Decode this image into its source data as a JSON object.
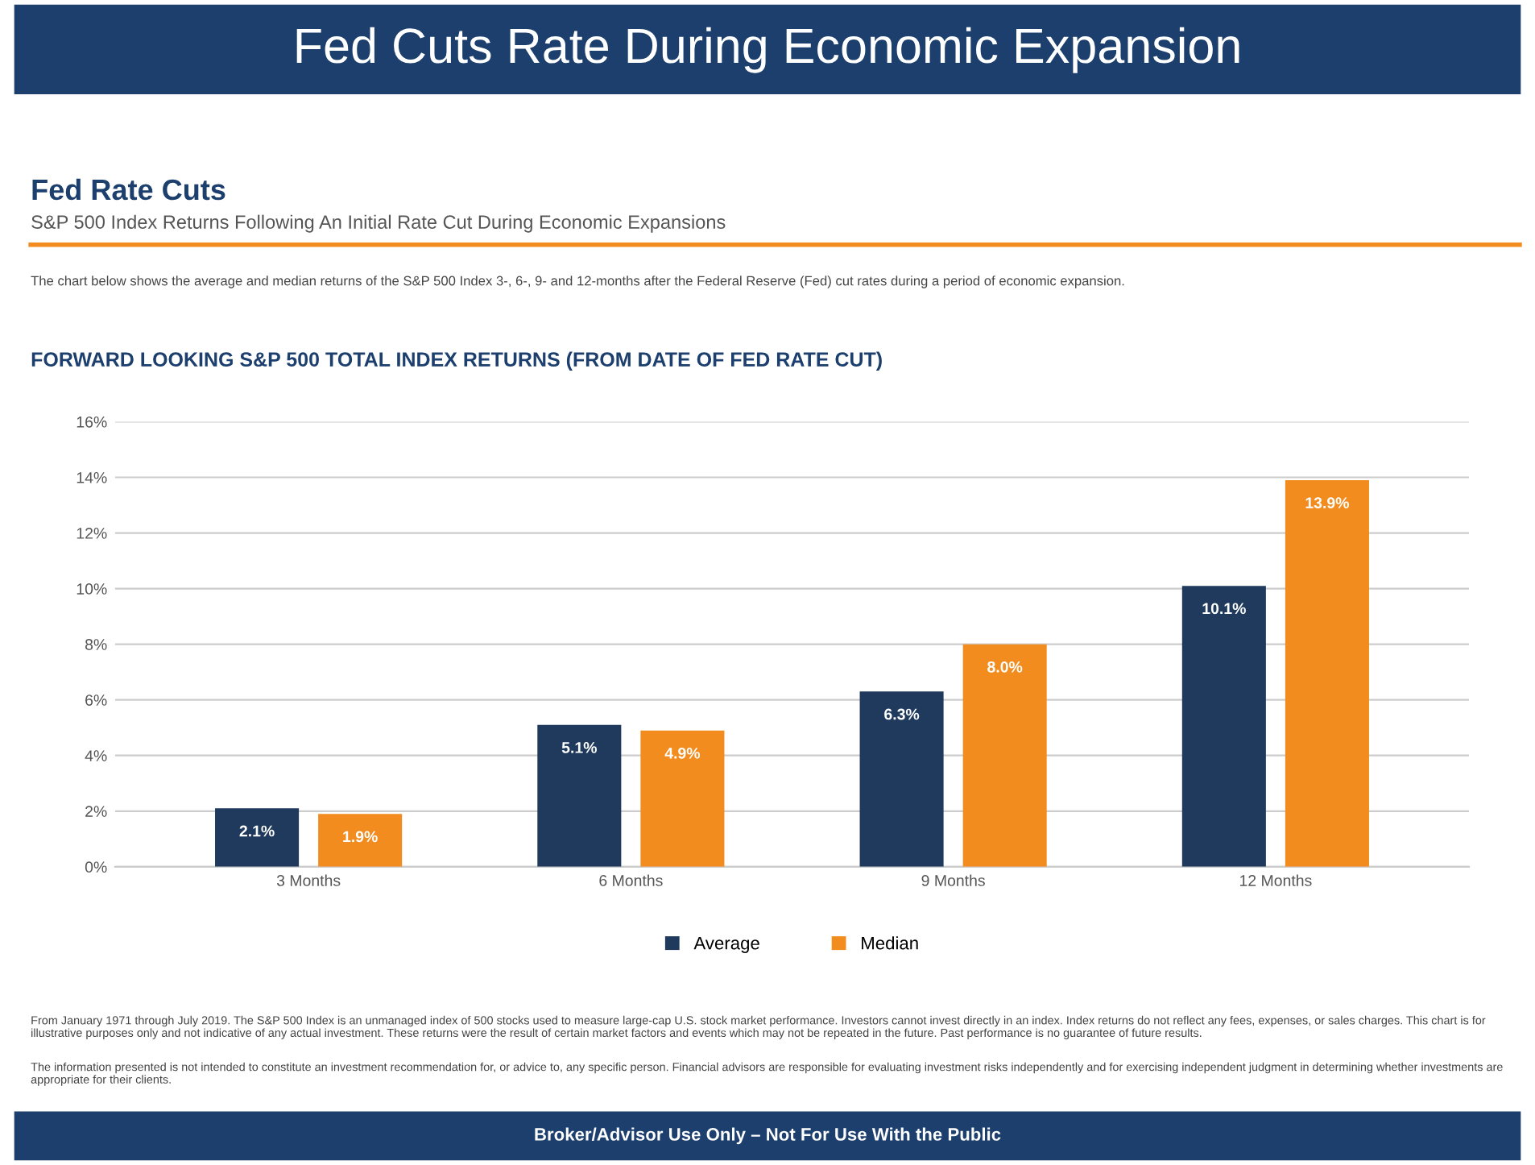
{
  "chart_data": {
    "type": "bar",
    "title": "Fed Cuts Rate During Economic Expansion",
    "subtitle": "Fed Rate Cuts",
    "annotations": [
      "S&P 500 Index Returns Following An Initial Rate Cut During Economic Expansions",
      "The chart below shows the average and median returns of the S&P 500 Index 3-, 6-, 9- and 12-months after the Federal Reserve (Fed) cut rates during a period of economic expansion.",
      "FORWARD LOOKING S&P 500 TOTAL INDEX RETURNS (FROM DATE OF FED RATE CUT)",
      "From January 1971 through July 2019. The S&P 500 Index is an unmanaged index of 500 stocks used to measure large-cap U.S. stock market performance. Investors cannot invest directly in an index. Index returns do not reflect any fees, expenses, or sales charges. This chart is for illustrative purposes only and not indicative of any actual investment. These returns were the result of certain market factors and events which may not be repeated in the future. Past performance is no guarantee of future results.",
      "The information presented is not intended to constitute an investment recommendation for, or advice to, any specific person. Financial advisors are responsible for evaluating investment risks independently and for exercising independent judgment in determining whether investments are appropriate for their clients.",
      "Broker/Advisor Use Only – Not For Use With the Public"
    ],
    "categories": [
      "3 Months",
      "6 Months",
      "9 Months",
      "12 Months"
    ],
    "series": [
      {
        "name": "Average",
        "color": "#1f3a5c",
        "values": [
          2.1,
          5.1,
          6.3,
          10.1
        ],
        "value_labels": [
          "2.1%",
          "5.1%",
          "6.3%",
          "10.1%"
        ]
      },
      {
        "name": "Median",
        "color": "#f28c1e",
        "values": [
          1.9,
          4.9,
          8.0,
          13.9
        ],
        "value_labels": [
          "1.9%",
          "4.9%",
          "8.0%",
          "13.9%"
        ]
      }
    ],
    "ylim": [
      0,
      16
    ],
    "yticks": [
      {
        "value": 0,
        "label": "0%"
      },
      {
        "value": 2,
        "label": "2%"
      },
      {
        "value": 4,
        "label": "4%"
      },
      {
        "value": 6,
        "label": "6%"
      },
      {
        "value": 8,
        "label": "8%"
      },
      {
        "value": 10,
        "label": "10%"
      },
      {
        "value": 12,
        "label": "12%"
      },
      {
        "value": 14,
        "label": "14%"
      },
      {
        "value": 16,
        "label": "16%"
      }
    ],
    "grid": "y",
    "legend": "bottom"
  }
}
